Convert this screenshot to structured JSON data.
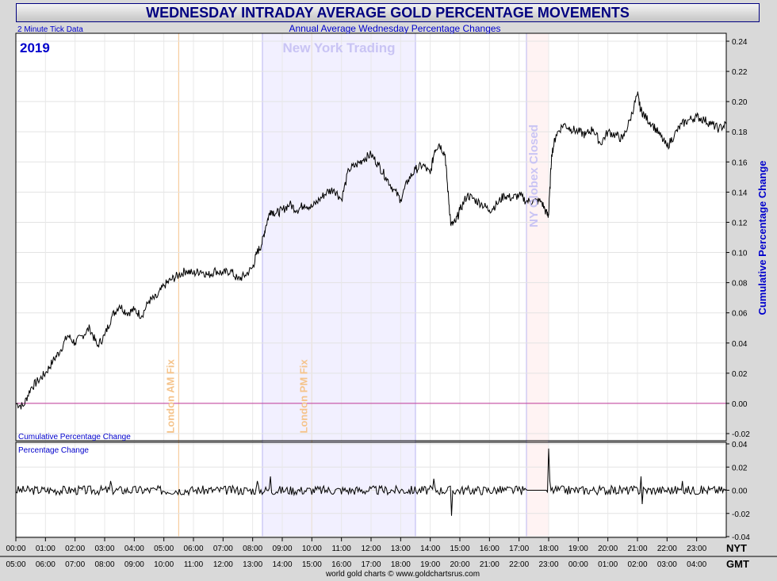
{
  "header": {
    "title": "WEDNESDAY INTRADAY AVERAGE GOLD PERCENTAGE MOVEMENTS",
    "tick_note": "2 Minute Tick Data",
    "subtitle": "Annual Average Wednesday Percentage Changes",
    "year": "2019",
    "credit": "world gold charts © www.goldchartsrus.com"
  },
  "colors": {
    "title": "#000080",
    "frame": "#d9d9d9",
    "line": "#000000",
    "ny_band": "#f2f0ff",
    "globex_band": "#fff3f3",
    "fix_line": "#f5c38a",
    "zero_line": "#c0399a"
  },
  "chart_data": [
    {
      "type": "line",
      "panel": "main",
      "title": "Cumulative Percentage Change",
      "ylabel": "Cumulative Percentage Change",
      "ylim": [
        -0.02,
        0.24
      ],
      "yticks": [
        "0.24",
        "0.22",
        "0.20",
        "0.18",
        "0.16",
        "0.14",
        "0.12",
        "0.10",
        "0.08",
        "0.06",
        "0.04",
        "0.02",
        "0.00",
        "-0.02"
      ],
      "xlim": [
        0,
        24
      ],
      "grid": true,
      "zero_line": 0.0,
      "annotations": [
        {
          "text": "New York Trading",
          "from": 8.33,
          "to": 13.5
        },
        {
          "text": "NY Globex Closed",
          "from": 17.25,
          "to": 18.0
        },
        {
          "text": "London AM Fix",
          "at": 5.5
        },
        {
          "text": "London PM Fix",
          "at": 10.0
        }
      ],
      "series_points": [
        [
          0.0,
          0.0
        ],
        [
          0.25,
          -0.002
        ],
        [
          0.5,
          0.01
        ],
        [
          0.75,
          0.015
        ],
        [
          1.0,
          0.02
        ],
        [
          1.25,
          0.028
        ],
        [
          1.5,
          0.035
        ],
        [
          1.75,
          0.045
        ],
        [
          2.0,
          0.04
        ],
        [
          2.25,
          0.045
        ],
        [
          2.5,
          0.05
        ],
        [
          2.75,
          0.038
        ],
        [
          3.0,
          0.045
        ],
        [
          3.25,
          0.058
        ],
        [
          3.5,
          0.065
        ],
        [
          3.75,
          0.06
        ],
        [
          4.0,
          0.062
        ],
        [
          4.25,
          0.058
        ],
        [
          4.5,
          0.068
        ],
        [
          4.75,
          0.07
        ],
        [
          5.0,
          0.078
        ],
        [
          5.25,
          0.082
        ],
        [
          5.5,
          0.085
        ],
        [
          5.75,
          0.088
        ],
        [
          6.0,
          0.086
        ],
        [
          6.25,
          0.088
        ],
        [
          6.5,
          0.085
        ],
        [
          6.75,
          0.088
        ],
        [
          7.0,
          0.086
        ],
        [
          7.25,
          0.088
        ],
        [
          7.5,
          0.082
        ],
        [
          7.75,
          0.085
        ],
        [
          8.0,
          0.09
        ],
        [
          8.15,
          0.1
        ],
        [
          8.3,
          0.105
        ],
        [
          8.45,
          0.118
        ],
        [
          8.6,
          0.128
        ],
        [
          8.8,
          0.126
        ],
        [
          9.0,
          0.128
        ],
        [
          9.25,
          0.132
        ],
        [
          9.5,
          0.128
        ],
        [
          9.75,
          0.132
        ],
        [
          10.0,
          0.13
        ],
        [
          10.25,
          0.135
        ],
        [
          10.5,
          0.14
        ],
        [
          10.75,
          0.142
        ],
        [
          11.0,
          0.135
        ],
        [
          11.25,
          0.155
        ],
        [
          11.5,
          0.158
        ],
        [
          11.75,
          0.162
        ],
        [
          12.0,
          0.165
        ],
        [
          12.25,
          0.158
        ],
        [
          12.5,
          0.15
        ],
        [
          12.75,
          0.142
        ],
        [
          13.0,
          0.135
        ],
        [
          13.25,
          0.148
        ],
        [
          13.5,
          0.155
        ],
        [
          13.75,
          0.158
        ],
        [
          14.0,
          0.152
        ],
        [
          14.15,
          0.168
        ],
        [
          14.3,
          0.172
        ],
        [
          14.5,
          0.165
        ],
        [
          14.6,
          0.14
        ],
        [
          14.7,
          0.118
        ],
        [
          14.85,
          0.12
        ],
        [
          15.0,
          0.128
        ],
        [
          15.25,
          0.138
        ],
        [
          15.5,
          0.135
        ],
        [
          15.75,
          0.132
        ],
        [
          16.0,
          0.128
        ],
        [
          16.25,
          0.132
        ],
        [
          16.5,
          0.138
        ],
        [
          16.75,
          0.136
        ],
        [
          17.0,
          0.138
        ],
        [
          17.25,
          0.134
        ],
        [
          17.5,
          0.134
        ],
        [
          17.75,
          0.134
        ],
        [
          17.95,
          0.125
        ],
        [
          18.0,
          0.125
        ],
        [
          18.1,
          0.165
        ],
        [
          18.25,
          0.178
        ],
        [
          18.5,
          0.185
        ],
        [
          18.75,
          0.182
        ],
        [
          19.0,
          0.18
        ],
        [
          19.25,
          0.178
        ],
        [
          19.5,
          0.182
        ],
        [
          19.75,
          0.172
        ],
        [
          20.0,
          0.18
        ],
        [
          20.25,
          0.178
        ],
        [
          20.5,
          0.175
        ],
        [
          20.75,
          0.188
        ],
        [
          21.0,
          0.205
        ],
        [
          21.1,
          0.195
        ],
        [
          21.25,
          0.19
        ],
        [
          21.5,
          0.185
        ],
        [
          21.75,
          0.178
        ],
        [
          22.0,
          0.17
        ],
        [
          22.25,
          0.178
        ],
        [
          22.5,
          0.185
        ],
        [
          22.75,
          0.188
        ],
        [
          23.0,
          0.19
        ],
        [
          23.25,
          0.188
        ],
        [
          23.5,
          0.185
        ],
        [
          23.75,
          0.182
        ],
        [
          24.0,
          0.185
        ]
      ]
    },
    {
      "type": "line",
      "panel": "lower",
      "title": "Percentage Change",
      "ylim": [
        -0.04,
        0.04
      ],
      "yticks": [
        "0.04",
        "0.02",
        "0.00",
        "-0.02",
        "-0.04"
      ],
      "xlim": [
        0,
        24
      ],
      "grid": true,
      "noise_amplitude": 0.004,
      "spikes": [
        [
          3.2,
          0.008
        ],
        [
          8.15,
          0.008
        ],
        [
          8.6,
          0.012
        ],
        [
          14.1,
          0.01
        ],
        [
          14.7,
          -0.022
        ],
        [
          18.0,
          0.036
        ],
        [
          18.05,
          0.008
        ],
        [
          21.1,
          0.012
        ],
        [
          21.15,
          -0.012
        ],
        [
          22.5,
          0.008
        ]
      ]
    }
  ],
  "x_axis": {
    "nyt_label": "NYT",
    "gmt_label": "GMT",
    "nyt_ticks": [
      "00:00",
      "01:00",
      "02:00",
      "03:00",
      "04:00",
      "05:00",
      "06:00",
      "07:00",
      "08:00",
      "09:00",
      "10:00",
      "11:00",
      "12:00",
      "13:00",
      "14:00",
      "15:00",
      "16:00",
      "17:00",
      "18:00",
      "19:00",
      "20:00",
      "21:00",
      "22:00",
      "23:00"
    ],
    "gmt_ticks": [
      "05:00",
      "06:00",
      "07:00",
      "08:00",
      "09:00",
      "10:00",
      "11:00",
      "12:00",
      "13:00",
      "14:00",
      "15:00",
      "16:00",
      "17:00",
      "18:00",
      "19:00",
      "20:00",
      "21:00",
      "22:00",
      "23:00",
      "00:00",
      "01:00",
      "02:00",
      "03:00",
      "04:00"
    ]
  }
}
